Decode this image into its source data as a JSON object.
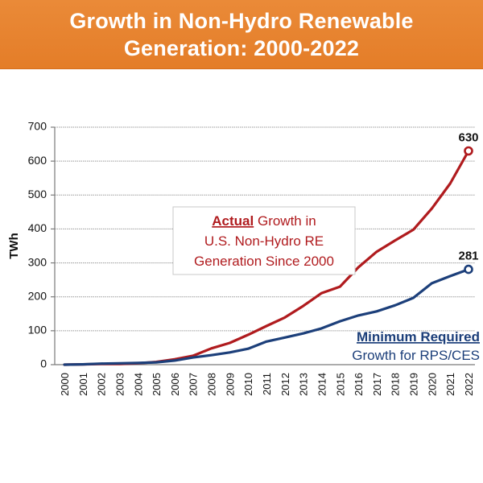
{
  "banner": {
    "title": "Growth in Non-Hydro Renewable\nGeneration: 2000-2022",
    "color": "#E8832F"
  },
  "chart_data": {
    "type": "line",
    "title": "Growth in Non-Hydro Renewable Generation: 2000-2022",
    "xlabel": "",
    "ylabel": "TWh",
    "ylim": [
      0,
      700
    ],
    "yticks": [
      0,
      100,
      200,
      300,
      400,
      500,
      600,
      700
    ],
    "grid": true,
    "x": [
      "2000",
      "2001",
      "2002",
      "2003",
      "2004",
      "2005",
      "2006",
      "2007",
      "2008",
      "2009",
      "2010",
      "2011",
      "2012",
      "2013",
      "2014",
      "2015",
      "2016",
      "2017",
      "2018",
      "2019",
      "2020",
      "2021",
      "2022"
    ],
    "series": [
      {
        "name": "Actual Growth in U.S. Non-Hydro RE Generation Since 2000",
        "color": "#B01B1E",
        "values": [
          0,
          1,
          2,
          2,
          4,
          8,
          16,
          26,
          48,
          64,
          88,
          114,
          139,
          173,
          211,
          230,
          287,
          333,
          366,
          398,
          460,
          534,
          630
        ],
        "end_label": "630"
      },
      {
        "name": "Minimum Required Growth for RPS/CES",
        "color": "#1C3F7A",
        "values": [
          0,
          1,
          3,
          4,
          5,
          7,
          12,
          21,
          28,
          36,
          47,
          68,
          80,
          92,
          107,
          128,
          145,
          157,
          175,
          197,
          240,
          261,
          281
        ],
        "end_label": "281"
      }
    ],
    "annotations": [
      {
        "series": 0,
        "bold_word": "Actual",
        "lines": [
          "Growth in",
          "U.S. Non-Hydro RE",
          "Generation Since 2000"
        ]
      },
      {
        "series": 1,
        "bold_word": "Minimum Required",
        "lines": [
          "Growth for RPS/CES"
        ]
      }
    ]
  }
}
